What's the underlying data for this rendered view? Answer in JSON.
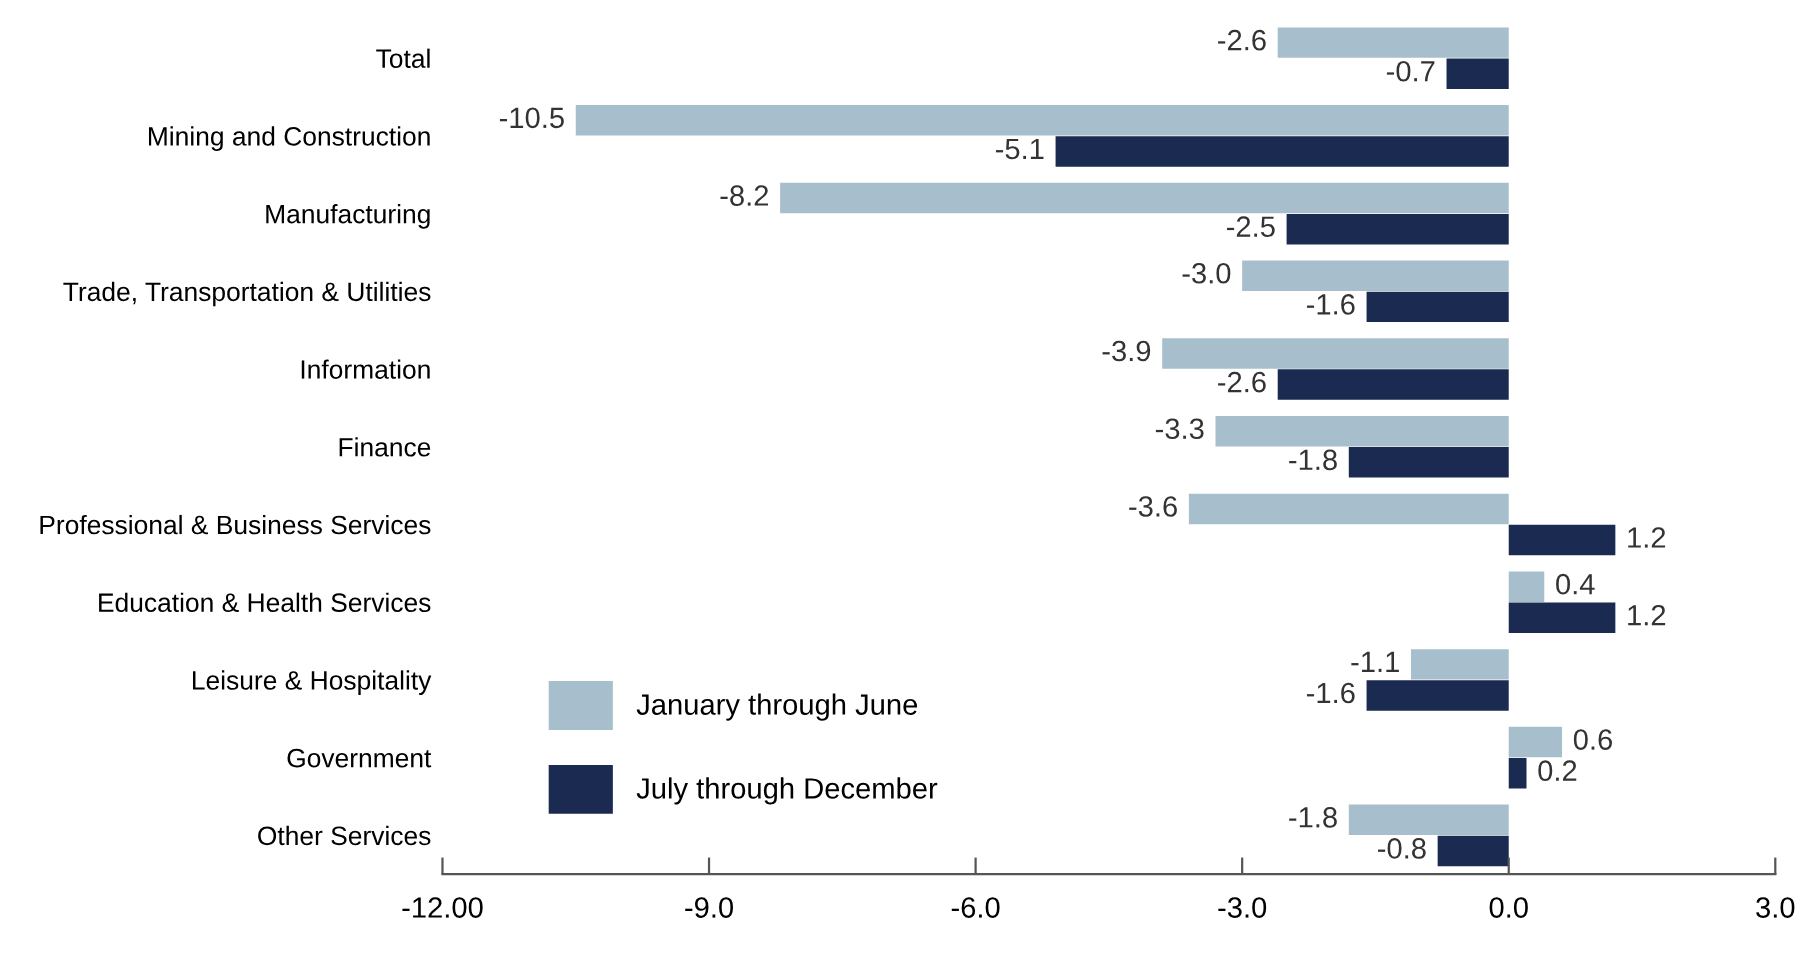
{
  "chart_data": {
    "type": "bar",
    "orientation": "horizontal",
    "categories": [
      "Total",
      "Mining and Construction",
      "Manufacturing",
      "Trade, Transportation & Utilities",
      "Information",
      "Finance",
      "Professional & Business Services",
      "Education & Health Services",
      "Leisure & Hospitality",
      "Government",
      "Other Services"
    ],
    "series": [
      {
        "name": "January through June",
        "color": "#a7bfcc",
        "values": [
          -2.6,
          -10.5,
          -8.2,
          -3.0,
          -3.9,
          -3.3,
          -3.6,
          0.4,
          -1.1,
          0.6,
          -1.8
        ],
        "value_labels": [
          "-2.6",
          "-10.5",
          "-8.2",
          "-3.0",
          "-3.9",
          "-3.3",
          "-3.6",
          "0.4",
          "-1.1",
          "0.6",
          "-1.8"
        ]
      },
      {
        "name": "July through December",
        "color": "#1b2a50",
        "values": [
          -0.7,
          -5.1,
          -2.5,
          -1.6,
          -2.6,
          -1.8,
          1.2,
          1.2,
          -1.6,
          0.2,
          -0.8
        ],
        "value_labels": [
          "-0.7",
          "-5.1",
          "-2.5",
          "-1.6",
          "-2.6",
          "-1.8",
          "1.2",
          "1.2",
          "-1.6",
          "0.2",
          "-0.8"
        ]
      }
    ],
    "xlim": [
      -12,
      3
    ],
    "xticks": [
      {
        "value": -12,
        "label": "-12.00"
      },
      {
        "value": -9,
        "label": "-9.0"
      },
      {
        "value": -6,
        "label": "-6.0"
      },
      {
        "value": -3,
        "label": "-3.0"
      },
      {
        "value": 0,
        "label": "0.0"
      },
      {
        "value": 3,
        "label": "3.0"
      }
    ],
    "grid": false,
    "legend": "bottom left"
  }
}
